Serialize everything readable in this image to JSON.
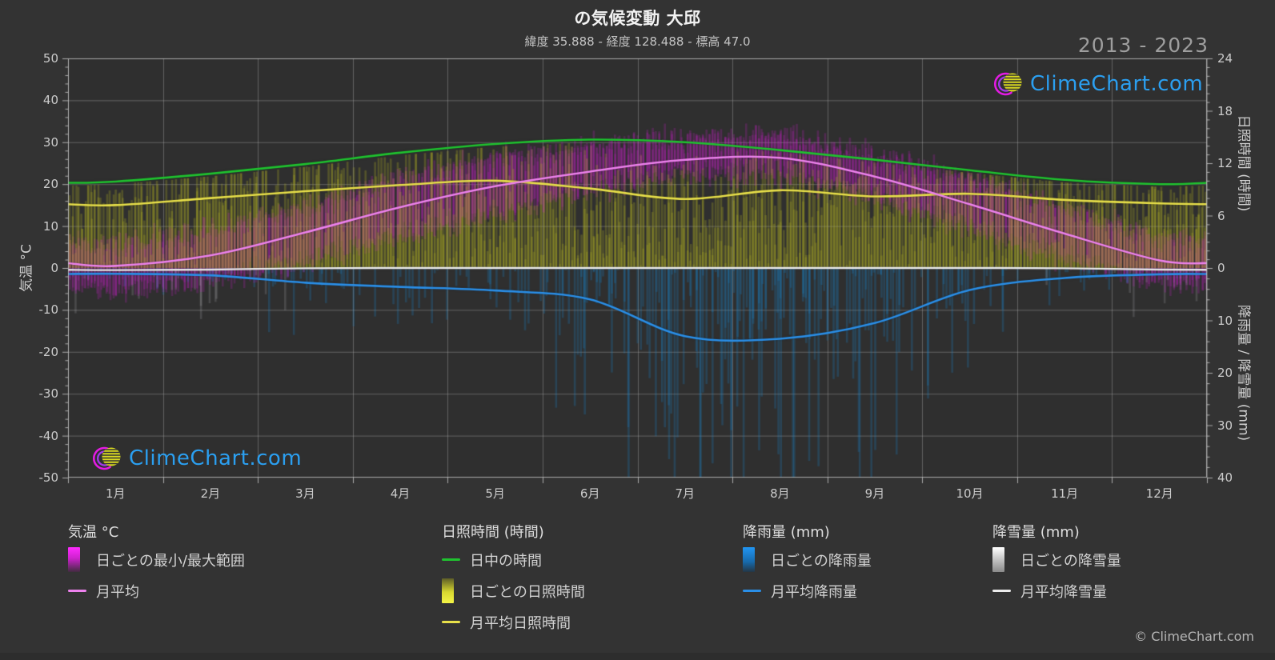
{
  "header": {
    "title": "の気候変動 大邱",
    "subtitle": "緯度 35.888 - 経度 128.488 - 標高 47.0",
    "period": "2013 - 2023"
  },
  "branding": {
    "logo_text": "ClimeChart.com",
    "copyright": "© ClimeChart.com"
  },
  "legend": {
    "groups": [
      {
        "title": "気温 °C",
        "items": [
          {
            "swatch": "temp_bar_gradient",
            "label": "日ごとの最小/最大範囲"
          },
          {
            "swatch": "temp_line",
            "label": "月平均"
          }
        ]
      },
      {
        "title": "日照時間 (時間)",
        "items": [
          {
            "swatch": "day_length_line",
            "label": "日中の時間"
          },
          {
            "swatch": "sun_bar_gradient",
            "label": "日ごとの日照時間"
          },
          {
            "swatch": "sun_line",
            "label": "月平均日照時間"
          }
        ]
      },
      {
        "title": "降雨量 (mm)",
        "items": [
          {
            "swatch": "rain_bar_gradient",
            "label": "日ごとの降雨量"
          },
          {
            "swatch": "rain_line",
            "label": "月平均降雨量"
          }
        ]
      },
      {
        "title": "降雪量 (mm)",
        "items": [
          {
            "swatch": "snow_bar_gradient",
            "label": "日ごとの降雪量"
          },
          {
            "swatch": "snow_line",
            "label": "月平均降雪量"
          }
        ]
      }
    ]
  },
  "chart_data": {
    "type": "climate-composite",
    "title": "の気候変動 大邱",
    "subtitle": "緯度 35.888 - 経度 128.488 - 標高 47.0",
    "period": "2013 - 2023",
    "months": [
      "1月",
      "2月",
      "3月",
      "4月",
      "5月",
      "6月",
      "7月",
      "8月",
      "9月",
      "10月",
      "11月",
      "12月"
    ],
    "axes": {
      "left_temp": {
        "label": "気温 °C",
        "min": -50,
        "max": 50,
        "ticks": [
          50,
          40,
          30,
          20,
          10,
          0,
          -10,
          -20,
          -30,
          -40,
          -50
        ]
      },
      "right_sun": {
        "label": "日照時間 (時間)",
        "min": 0,
        "max": 24,
        "ticks": [
          24,
          18,
          12,
          6,
          0
        ]
      },
      "right_precip": {
        "label": "降雨量 / 降雪量 (mm)",
        "min": 0,
        "max": 40,
        "ticks": [
          10,
          20,
          30,
          40
        ]
      }
    },
    "series": [
      {
        "id": "day_length",
        "name": "日中の時間",
        "type": "line",
        "unit": "hours",
        "values": [
          9.9,
          10.8,
          11.9,
          13.2,
          14.2,
          14.7,
          14.4,
          13.5,
          12.4,
          11.2,
          10.1,
          9.6
        ]
      },
      {
        "id": "sun_avg",
        "name": "月平均日照時間",
        "type": "line",
        "unit": "hours",
        "values": [
          7.2,
          8.0,
          8.8,
          9.5,
          10.0,
          9.1,
          7.9,
          8.9,
          8.2,
          8.5,
          7.8,
          7.4
        ]
      },
      {
        "id": "temp_avg",
        "name": "月平均",
        "type": "line",
        "unit": "°C",
        "values": [
          0.5,
          3.0,
          8.5,
          14.5,
          19.5,
          23.0,
          25.8,
          26.3,
          21.8,
          15.2,
          8.2,
          1.8
        ]
      },
      {
        "id": "rain_avg",
        "name": "月平均降雨量",
        "type": "line",
        "unit": "mm",
        "values": [
          1.1,
          1.4,
          2.8,
          3.6,
          4.3,
          6.0,
          13.0,
          13.5,
          10.5,
          4.2,
          1.9,
          1.2
        ]
      },
      {
        "id": "snow_avg",
        "name": "月平均降雪量",
        "type": "line",
        "unit": "mm",
        "values": [
          0.4,
          0.3,
          0.05,
          0,
          0,
          0,
          0,
          0,
          0,
          0,
          0.05,
          0.3
        ]
      },
      {
        "id": "temp_range_daily",
        "name": "日ごとの最小/最大範囲",
        "type": "daily-range-bars",
        "unit": "°C",
        "monthly_max_avg": [
          5.5,
          8.5,
          14.5,
          21.0,
          26.0,
          29.0,
          30.8,
          31.8,
          27.0,
          21.5,
          14.0,
          7.0
        ],
        "monthly_min_avg": [
          -5.0,
          -3.0,
          2.0,
          7.5,
          13.0,
          18.5,
          22.5,
          23.0,
          17.0,
          9.5,
          2.5,
          -3.0
        ]
      },
      {
        "id": "sun_daily",
        "name": "日ごとの日照時間",
        "type": "daily-bars",
        "unit": "hours",
        "monthly_avg": [
          7.2,
          8.0,
          8.8,
          9.5,
          10.0,
          9.1,
          7.9,
          8.9,
          8.2,
          8.5,
          7.8,
          7.4
        ]
      },
      {
        "id": "rain_daily",
        "name": "日ごとの降雨量",
        "type": "daily-bars",
        "unit": "mm",
        "monthly_avg": [
          1.1,
          1.4,
          2.8,
          3.6,
          4.3,
          6.0,
          13.0,
          13.5,
          10.5,
          4.2,
          1.9,
          1.2
        ]
      },
      {
        "id": "snow_daily",
        "name": "日ごとの降雪量",
        "type": "daily-bars",
        "unit": "mm",
        "monthly_avg": [
          0.4,
          0.3,
          0.05,
          0,
          0,
          0,
          0,
          0,
          0,
          0,
          0.05,
          0.3
        ]
      }
    ],
    "colors": {
      "background": "#333333",
      "plot_background": "#2f2f2f",
      "grid": "#aaaaaa",
      "axis": "#c8c8c8",
      "temp_bar": "#cc22cc",
      "temp_line": "#ee82ee",
      "day_length_line": "#1fc32f",
      "sun_bar": "#a8a826",
      "sun_line": "#e8e04a",
      "rain_bar": "#1f77b4",
      "rain_line": "#2a8fe8",
      "snow_bar": "#c8c8cc",
      "snow_line": "#ececec",
      "logo_blue": "#2b9ff0",
      "logo_magenta": "#e31be3",
      "logo_purple": "#a03ae8",
      "logo_yellow": "#d8d820"
    }
  }
}
